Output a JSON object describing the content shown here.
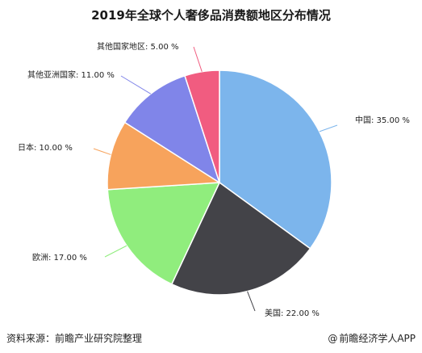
{
  "chart_data": {
    "type": "pie",
    "title": "2019年全球个人奢侈品消费额地区分布情况",
    "categories": [
      "中国",
      "美国",
      "欧洲",
      "日本",
      "其他亚洲国家",
      "其他国家地区"
    ],
    "values": [
      35.0,
      22.0,
      17.0,
      10.0,
      11.0,
      5.0
    ],
    "value_labels": [
      "35.00 %",
      "22.00 %",
      "17.00 %",
      "10.00 %",
      "11.00 %",
      "5.00 %"
    ],
    "colors": [
      "#7cb5ec",
      "#434348",
      "#90ed7d",
      "#f7a35c",
      "#8085e9",
      "#f15c80"
    ],
    "legend": "none",
    "start_angle_deg": 0,
    "direction": "clockwise"
  },
  "footer": {
    "source": "资料来源：前瞻产业研究院整理",
    "credit_symbol": "@",
    "credit": "前瞻经济学人APP"
  }
}
